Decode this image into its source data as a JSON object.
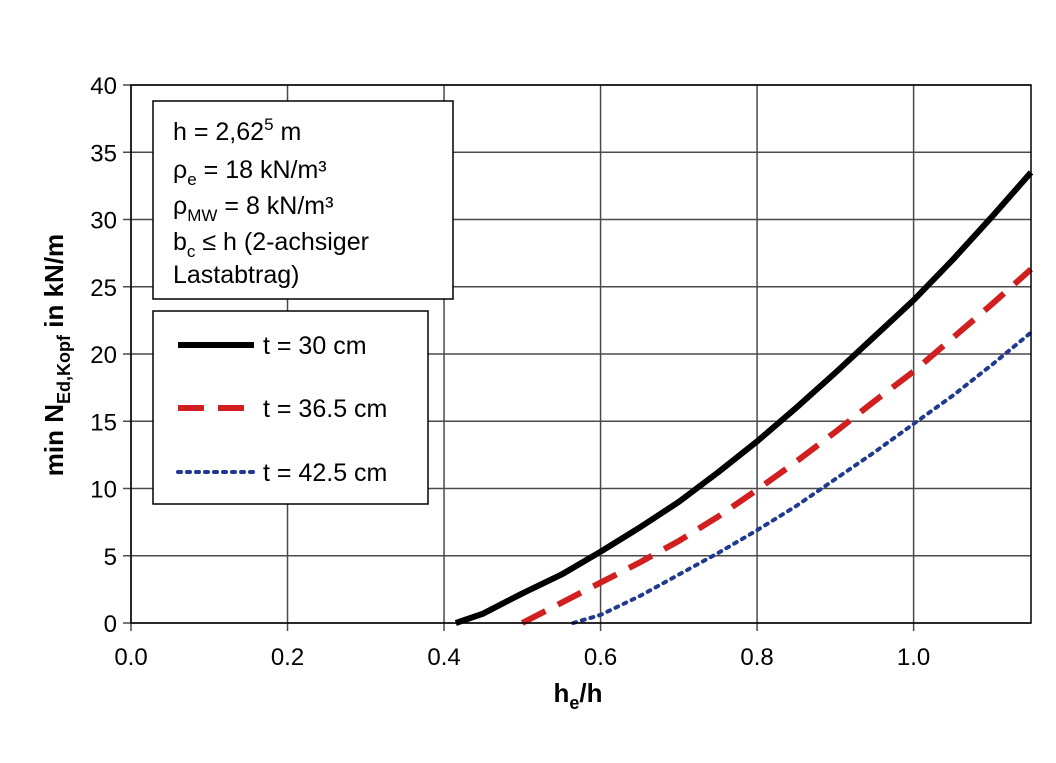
{
  "chart_data": {
    "type": "line",
    "xlim": [
      0.0,
      1.15
    ],
    "ylim": [
      0,
      40
    ],
    "x_ticks": [
      "0.0",
      "0.2",
      "0.4",
      "0.6",
      "0.8",
      "1.0"
    ],
    "y_ticks": [
      "0",
      "5",
      "10",
      "15",
      "20",
      "25",
      "30",
      "35",
      "40"
    ],
    "xlabel": {
      "main": "h",
      "sub": "e",
      "rest": "/h"
    },
    "ylabel": {
      "main": "min N",
      "sub": "Ed,Kopf",
      "rest": " in kN/m"
    },
    "grid": true,
    "info_box": [
      {
        "main": "h = 2,62",
        "sup": "5",
        "rest": " m"
      },
      {
        "main": "ρ",
        "sub": "e",
        "rest": " = 18 kN/m³"
      },
      {
        "main": "ρ",
        "sub": "MW",
        "rest": " = 8 kN/m³"
      },
      {
        "main": "b",
        "sub": "c",
        "rest": " ≤ h (2-achsiger"
      },
      {
        "main": "Lastabtrag)"
      }
    ],
    "legend_position": "upper-left",
    "series": [
      {
        "name": "t = 30 cm",
        "color": "#000000",
        "style": "solid",
        "x": [
          0.415,
          0.45,
          0.5,
          0.55,
          0.6,
          0.65,
          0.7,
          0.75,
          0.8,
          0.85,
          0.9,
          0.95,
          1.0,
          1.05,
          1.1,
          1.15
        ],
        "y": [
          0,
          0.7,
          2.2,
          3.6,
          5.3,
          7.1,
          9.0,
          11.2,
          13.5,
          16.0,
          18.6,
          21.3,
          24.0,
          27.0,
          30.2,
          33.5
        ]
      },
      {
        "name": "t = 36.5 cm",
        "color": "#d11f1f",
        "style": "dashed",
        "x": [
          0.5,
          0.55,
          0.6,
          0.65,
          0.7,
          0.75,
          0.8,
          0.85,
          0.9,
          0.95,
          1.0,
          1.05,
          1.1,
          1.15
        ],
        "y": [
          0,
          1.5,
          3.0,
          4.5,
          6.1,
          7.9,
          9.9,
          12.0,
          14.2,
          16.5,
          18.7,
          21.2,
          23.7,
          26.3
        ]
      },
      {
        "name": "t = 42.5 cm",
        "color": "#1f3a8f",
        "style": "dotted",
        "x": [
          0.565,
          0.6,
          0.65,
          0.7,
          0.75,
          0.8,
          0.85,
          0.9,
          0.95,
          1.0,
          1.05,
          1.1,
          1.15
        ],
        "y": [
          0,
          0.6,
          2.0,
          3.6,
          5.2,
          6.9,
          8.7,
          10.7,
          12.7,
          14.8,
          16.9,
          19.2,
          21.6
        ]
      }
    ]
  }
}
